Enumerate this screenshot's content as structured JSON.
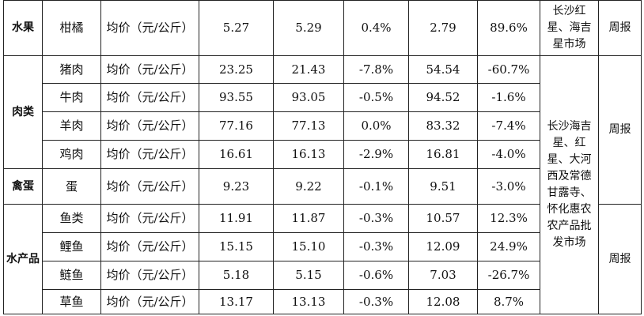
{
  "unit": "均价（元/公斤）",
  "rows": [
    {
      "category": "水果",
      "item": "柑橘",
      "v1": "5.27",
      "v2": "5.29",
      "chg1": "0.4%",
      "v3": "2.79",
      "chg2": "89.6%"
    },
    {
      "category": "肉类",
      "item": "猪肉",
      "v1": "23.25",
      "v2": "21.43",
      "chg1": "-7.8%",
      "v3": "54.54",
      "chg2": "-60.7%"
    },
    {
      "item": "牛肉",
      "v1": "93.55",
      "v2": "93.05",
      "chg1": "-0.5%",
      "v3": "94.52",
      "chg2": "-1.6%"
    },
    {
      "item": "羊肉",
      "v1": "77.16",
      "v2": "77.13",
      "chg1": "0.0%",
      "v3": "83.32",
      "chg2": "-7.4%"
    },
    {
      "item": "鸡肉",
      "v1": "16.61",
      "v2": "16.13",
      "chg1": "-2.9%",
      "v3": "16.81",
      "chg2": "-4.0%"
    },
    {
      "category": "禽蛋",
      "item": "蛋",
      "v1": "9.23",
      "v2": "9.22",
      "chg1": "-0.1%",
      "v3": "9.51",
      "chg2": "-3.0%"
    },
    {
      "category": "水产品",
      "item": "鱼类",
      "v1": "11.91",
      "v2": "11.87",
      "chg1": "-0.3%",
      "v3": "10.57",
      "chg2": "12.3%"
    },
    {
      "item": "鲤鱼",
      "v1": "15.15",
      "v2": "15.10",
      "chg1": "-0.3%",
      "v3": "12.09",
      "chg2": "24.9%"
    },
    {
      "item": "鲢鱼",
      "v1": "5.18",
      "v2": "5.15",
      "chg1": "-0.6%",
      "v3": "7.03",
      "chg2": "-26.7%"
    },
    {
      "item": "草鱼",
      "v1": "13.17",
      "v2": "13.13",
      "chg1": "-0.3%",
      "v3": "12.08",
      "chg2": "8.7%"
    }
  ],
  "locations": {
    "fruit": "长沙红星、海吉星市场",
    "others": "长沙海吉星、红星、大河西及常德甘露寺、怀化惠农农产品批发市场"
  },
  "frequency": [
    "周报",
    "周报",
    "周报"
  ]
}
